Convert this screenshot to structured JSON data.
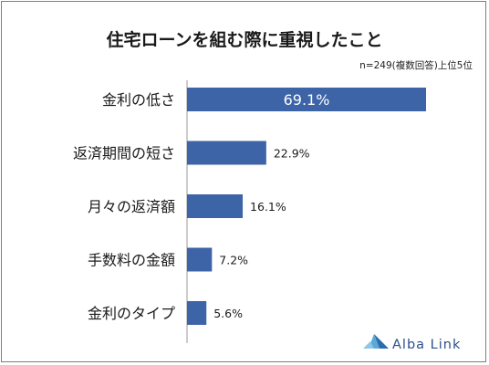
{
  "chart_data": {
    "type": "bar",
    "orientation": "horizontal",
    "title": "住宅ローンを組む際に重視したこと",
    "subtitle": "n=249(複数回答)上位5位",
    "categories": [
      "金利の低さ",
      "返済期間の短さ",
      "月々の返済額",
      "手数料の金額",
      "金利のタイプ"
    ],
    "values": [
      69.1,
      22.9,
      16.1,
      7.2,
      5.6
    ],
    "value_labels": [
      "69.1%",
      "22.9%",
      "16.1%",
      "7.2%",
      "5.6%"
    ],
    "unit": "%",
    "xlim": [
      0,
      69.1
    ],
    "grid": false,
    "bar_color": "#3d64a6"
  },
  "logo": {
    "text": "Alba Link",
    "color": "#2b4f8c"
  }
}
